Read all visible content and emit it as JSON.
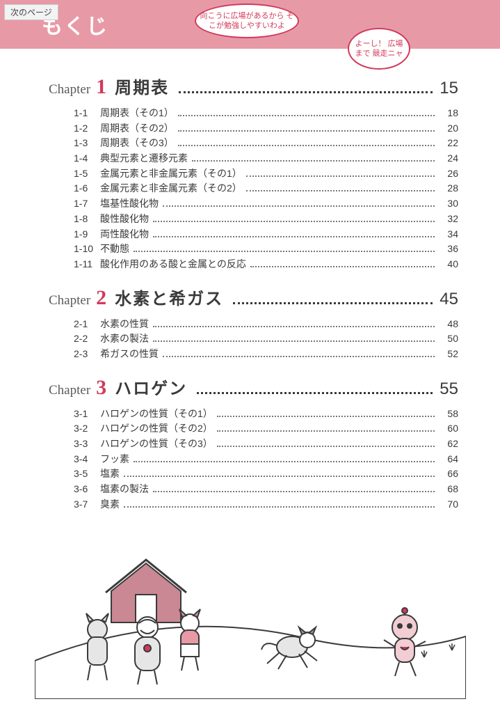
{
  "ui": {
    "next_page_button": "次のページ",
    "header_title": "もくじ",
    "chapter_label": "Chapter"
  },
  "colors": {
    "header_bg": "#e79aa6",
    "header_text": "#ffffff",
    "accent": "#d23a5b",
    "body_text": "#3a3a3a",
    "page_bg": "#ffffff",
    "button_bg": "#f3f3f3",
    "button_border": "#c8c8c8"
  },
  "typography": {
    "header_title_size": 30,
    "chapter_label_size": 19,
    "chapter_num_size": 30,
    "chapter_title_size": 24,
    "chapter_page_size": 24,
    "item_size": 14
  },
  "chapters": [
    {
      "num": "1",
      "title": "周期表",
      "page": "15",
      "items": [
        {
          "num": "1-1",
          "title": "周期表（その1）",
          "page": "18"
        },
        {
          "num": "1-2",
          "title": "周期表（その2）",
          "page": "20"
        },
        {
          "num": "1-3",
          "title": "周期表（その3）",
          "page": "22"
        },
        {
          "num": "1-4",
          "title": "典型元素と遷移元素",
          "page": "24"
        },
        {
          "num": "1-5",
          "title": "金属元素と非金属元素（その1）",
          "page": "26"
        },
        {
          "num": "1-6",
          "title": "金属元素と非金属元素（その2）",
          "page": "28"
        },
        {
          "num": "1-7",
          "title": "塩基性酸化物",
          "page": "30"
        },
        {
          "num": "1-8",
          "title": "酸性酸化物",
          "page": "32"
        },
        {
          "num": "1-9",
          "title": "両性酸化物",
          "page": "34"
        },
        {
          "num": "1-10",
          "title": "不動態",
          "page": "36"
        },
        {
          "num": "1-11",
          "title": "酸化作用のある酸と金属との反応",
          "page": "40"
        }
      ]
    },
    {
      "num": "2",
      "title": "水素と希ガス",
      "page": "45",
      "items": [
        {
          "num": "2-1",
          "title": "水素の性質",
          "page": "48"
        },
        {
          "num": "2-2",
          "title": "水素の製法",
          "page": "50"
        },
        {
          "num": "2-3",
          "title": "希ガスの性質",
          "page": "52"
        }
      ]
    },
    {
      "num": "3",
      "title": "ハロゲン",
      "page": "55",
      "items": [
        {
          "num": "3-1",
          "title": "ハロゲンの性質（その1）",
          "page": "58"
        },
        {
          "num": "3-2",
          "title": "ハロゲンの性質（その2）",
          "page": "60"
        },
        {
          "num": "3-3",
          "title": "ハロゲンの性質（その3）",
          "page": "62"
        },
        {
          "num": "3-4",
          "title": "フッ素",
          "page": "64"
        },
        {
          "num": "3-5",
          "title": "塩素",
          "page": "66"
        },
        {
          "num": "3-6",
          "title": "塩素の製法",
          "page": "68"
        },
        {
          "num": "3-7",
          "title": "臭素",
          "page": "70"
        }
      ]
    }
  ],
  "illustration": {
    "bubble1_text": "向こうに広場があるから\nそこが勉強しやすいわよ",
    "bubble2_text": "よーし！\n広場まで\n競走ニャ",
    "house_color": "#c98893",
    "ground_stroke": "#3a3a3a",
    "cat_pink": "#e79aa6",
    "cat_gray": "#b8b8b8"
  }
}
